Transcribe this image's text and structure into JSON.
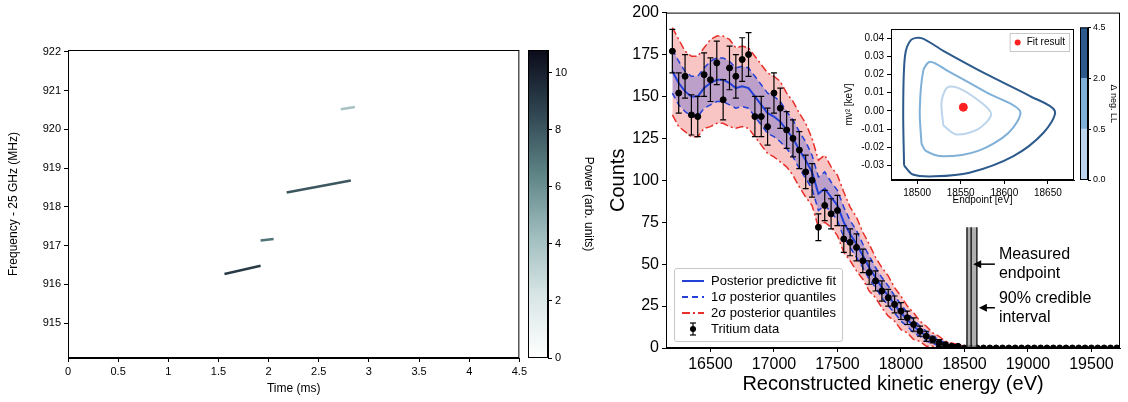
{
  "chart_data": [
    {
      "type": "spectrogram",
      "xlabel": "Time (ms)",
      "ylabel": "Frequency - 25 GHz (MHz)",
      "xlim": [
        0,
        4.5
      ],
      "xticks": [
        0,
        0.5,
        1,
        1.5,
        2,
        2.5,
        3,
        3.5,
        4,
        4.5
      ],
      "ylim": [
        914.1,
        922.05
      ],
      "yticks": [
        915,
        916,
        917,
        918,
        919,
        920,
        921,
        922
      ],
      "grid": false,
      "tracks": [
        {
          "x": [
            1.56,
            1.92
          ],
          "y": [
            916.27,
            916.48
          ],
          "power": 9
        },
        {
          "x": [
            1.92,
            2.05
          ],
          "y": [
            917.13,
            917.17
          ],
          "power": 7
        },
        {
          "x": [
            2.18,
            2.82
          ],
          "y": [
            918.37,
            918.68
          ],
          "power": 8
        },
        {
          "x": [
            2.72,
            2.86
          ],
          "y": [
            920.52,
            920.58
          ],
          "power": 4
        }
      ],
      "colorbar": {
        "label": "Power (arb. units)",
        "range": [
          0,
          10.8
        ],
        "ticks": [
          0,
          2,
          4,
          6,
          8,
          10
        ]
      }
    },
    {
      "type": "line",
      "xlabel": "Reconstructed kinetic energy (eV)",
      "ylabel": "Counts",
      "xlim": [
        16150,
        19725
      ],
      "xticks": [
        16500,
        17000,
        17500,
        18000,
        18500,
        19000,
        19500
      ],
      "ylim": [
        0,
        200
      ],
      "yticks": [
        0,
        25,
        50,
        75,
        100,
        125,
        150,
        175,
        200
      ],
      "grid": false,
      "legend": "lower left",
      "x": [
        16200,
        16250,
        16300,
        16350,
        16400,
        16450,
        16500,
        16550,
        16600,
        16650,
        16700,
        16750,
        16800,
        16850,
        16900,
        16950,
        17000,
        17050,
        17100,
        17150,
        17200,
        17250,
        17300,
        17350,
        17400,
        17450,
        17500,
        17550,
        17600,
        17650,
        17700,
        17750,
        17800,
        17850,
        17900,
        17950,
        18000,
        18050,
        18100,
        18150,
        18200,
        18250,
        18300,
        18350,
        18400,
        18450,
        18500,
        18550,
        18600,
        18650,
        18700,
        18750,
        18800,
        18850,
        18900,
        18950,
        19000,
        19050,
        19100,
        19150,
        19200,
        19250,
        19300,
        19350,
        19400,
        19450,
        19500,
        19550,
        19600,
        19650,
        19700
      ],
      "series": [
        {
          "name": "Posterior predictive fit",
          "color": "#2340d8",
          "line_style": "solid",
          "values": [
            165,
            158,
            153,
            150,
            150,
            155,
            158,
            160,
            160,
            158,
            155,
            156,
            155,
            150,
            145,
            140,
            138,
            135,
            130,
            125,
            118,
            112,
            105,
            92,
            95,
            90,
            85,
            75,
            68,
            62,
            55,
            48,
            42,
            36,
            31,
            26,
            21,
            17,
            13,
            10,
            7,
            5,
            3,
            2,
            1,
            0.5,
            0,
            0,
            0,
            0,
            0,
            0,
            0,
            0,
            0,
            0,
            0,
            0,
            0,
            0,
            0,
            0,
            0,
            0,
            0,
            0,
            0,
            0,
            0,
            0,
            0
          ]
        },
        {
          "name": "1σ posterior quantiles",
          "color": "#2340d8",
          "line_style": "dashed",
          "lower": [
            152,
            145,
            141,
            138,
            138,
            143,
            145,
            147,
            147,
            145,
            143,
            144,
            143,
            138,
            133,
            128,
            126,
            123,
            119,
            114,
            107,
            101,
            95,
            82,
            85,
            81,
            76,
            66,
            60,
            54,
            48,
            41,
            36,
            30,
            25,
            21,
            16,
            13,
            9,
            7,
            4,
            3,
            1,
            1,
            0,
            0,
            0,
            0,
            0,
            0,
            0,
            0,
            0,
            0,
            0,
            0,
            0,
            0,
            0,
            0,
            0,
            0,
            0,
            0,
            0,
            0,
            0,
            0,
            0,
            0,
            0
          ],
          "upper": [
            178,
            171,
            165,
            162,
            162,
            167,
            171,
            173,
            173,
            171,
            167,
            168,
            167,
            162,
            157,
            152,
            150,
            147,
            141,
            136,
            129,
            123,
            115,
            102,
            105,
            99,
            94,
            84,
            76,
            70,
            62,
            55,
            48,
            42,
            37,
            31,
            26,
            21,
            17,
            13,
            10,
            7,
            5,
            3,
            2,
            1,
            0,
            0,
            0,
            0,
            0,
            0,
            0,
            0,
            0,
            0,
            0,
            0,
            0,
            0,
            0,
            0,
            0,
            0,
            0,
            0,
            0,
            0,
            0,
            0,
            0
          ]
        },
        {
          "name": "2σ posterior quantiles",
          "color": "#e8302a",
          "line_style": "dashdot",
          "lower": [
            139,
            132,
            129,
            126,
            126,
            131,
            132,
            134,
            134,
            132,
            131,
            132,
            131,
            126,
            121,
            116,
            114,
            111,
            108,
            103,
            96,
            90,
            85,
            72,
            75,
            72,
            67,
            57,
            52,
            46,
            41,
            34,
            30,
            24,
            19,
            16,
            11,
            9,
            5,
            4,
            1,
            1,
            0,
            0,
            0,
            0,
            0,
            0,
            0,
            0,
            0,
            0,
            0,
            0,
            0,
            0,
            0,
            0,
            0,
            0,
            0,
            0,
            0,
            0,
            0,
            0,
            0,
            0,
            0,
            0,
            0
          ],
          "upper": [
            191,
            184,
            177,
            174,
            174,
            179,
            184,
            186,
            186,
            184,
            179,
            180,
            179,
            174,
            169,
            164,
            162,
            159,
            152,
            147,
            140,
            134,
            125,
            112,
            115,
            108,
            103,
            93,
            84,
            78,
            69,
            62,
            54,
            48,
            43,
            36,
            31,
            25,
            21,
            16,
            13,
            9,
            7,
            4,
            3,
            2,
            1,
            0,
            0,
            0,
            0,
            0,
            0,
            0,
            0,
            0,
            0,
            0,
            0,
            0,
            0,
            0,
            0,
            0,
            0,
            0,
            0,
            0,
            0,
            0,
            0
          ]
        },
        {
          "name": "Tritium data",
          "color": "#000000",
          "marker": "circle",
          "values": [
            177,
            152,
            162,
            139,
            138,
            163,
            160,
            170,
            148,
            167,
            162,
            172,
            175,
            138,
            138,
            132,
            152,
            143,
            130,
            125,
            118,
            105,
            100,
            72,
            85,
            80,
            82,
            65,
            63,
            60,
            52,
            45,
            40,
            34,
            30,
            26,
            22,
            18,
            14,
            10,
            7,
            5,
            3,
            2,
            1,
            1,
            0,
            0,
            0,
            0,
            0,
            0,
            0,
            0,
            0,
            0,
            0,
            0,
            0,
            0,
            0,
            0,
            0,
            0,
            0,
            0,
            0,
            0,
            0,
            0,
            0
          ],
          "errors": [
            13,
            12,
            13,
            12,
            12,
            13,
            13,
            13,
            12,
            13,
            13,
            13,
            13,
            12,
            12,
            11,
            12,
            12,
            11,
            11,
            11,
            10,
            10,
            8,
            9,
            9,
            9,
            8,
            8,
            8,
            7,
            7,
            6,
            6,
            5,
            5,
            5,
            4,
            4,
            3,
            3,
            2,
            2,
            1,
            1,
            1,
            0,
            0,
            0,
            0,
            0,
            0,
            0,
            0,
            0,
            0,
            0,
            0,
            0,
            0,
            0,
            0,
            0,
            0,
            0,
            0,
            0,
            0,
            0,
            0,
            0
          ]
        }
      ],
      "endpoint": {
        "label": "Measured endpoint",
        "value": 18553,
        "interval": [
          18520,
          18598
        ],
        "interval_label": "90% credible interval"
      }
    },
    {
      "type": "contour",
      "xlabel": "Endpoint [eV]",
      "ylabel": "mν² [keV]",
      "xlim": [
        18470,
        18680
      ],
      "xticks": [
        18500,
        18550,
        18600,
        18650
      ],
      "ylim": [
        -0.038,
        0.045
      ],
      "yticks": [
        -0.03,
        -0.02,
        -0.01,
        {
          "value": 0,
          "label": "0.00"
        },
        0.01,
        0.02,
        0.03,
        0.04
      ],
      "grid": false,
      "legend": "upper right",
      "contours": [
        {
          "level": 4.5,
          "x": [
            18485,
            18484,
            18486,
            18493,
            18505,
            18530,
            18580,
            18630,
            18658,
            18645,
            18610,
            18560,
            18520,
            18495,
            18485
          ],
          "y": [
            -0.03,
            0.0,
            0.03,
            0.039,
            0.04,
            0.033,
            0.02,
            0.008,
            0.0,
            -0.012,
            -0.025,
            -0.034,
            -0.036,
            -0.035,
            -0.03
          ]
        },
        {
          "level": 2.0,
          "x": [
            18505,
            18503,
            18507,
            18515,
            18535,
            18580,
            18618,
            18605,
            18570,
            18530,
            18510,
            18505
          ],
          "y": [
            -0.018,
            0.0,
            0.022,
            0.027,
            0.022,
            0.01,
            0.0,
            -0.012,
            -0.022,
            -0.025,
            -0.022,
            -0.018
          ]
        },
        {
          "level": 0.5,
          "x": [
            18530,
            18528,
            18535,
            18550,
            18575,
            18585,
            18570,
            18545,
            18530
          ],
          "y": [
            -0.008,
            0.005,
            0.013,
            0.012,
            0.004,
            -0.002,
            -0.01,
            -0.013,
            -0.008
          ]
        }
      ],
      "series": [
        {
          "name": "Fit result",
          "x": [
            18553
          ],
          "values": [
            0.002
          ],
          "color": "#ff2020",
          "marker": "circle"
        }
      ],
      "colorbar": {
        "label": "Δ neg. LL",
        "levels": [
          {
            "value": 0,
            "label": "0.0"
          },
          0.5,
          {
            "value": 2,
            "label": "2.0"
          },
          4.5
        ],
        "colors": [
          "#bcd5ec",
          "#7fb0d8",
          "#2c5a8c"
        ]
      }
    }
  ]
}
